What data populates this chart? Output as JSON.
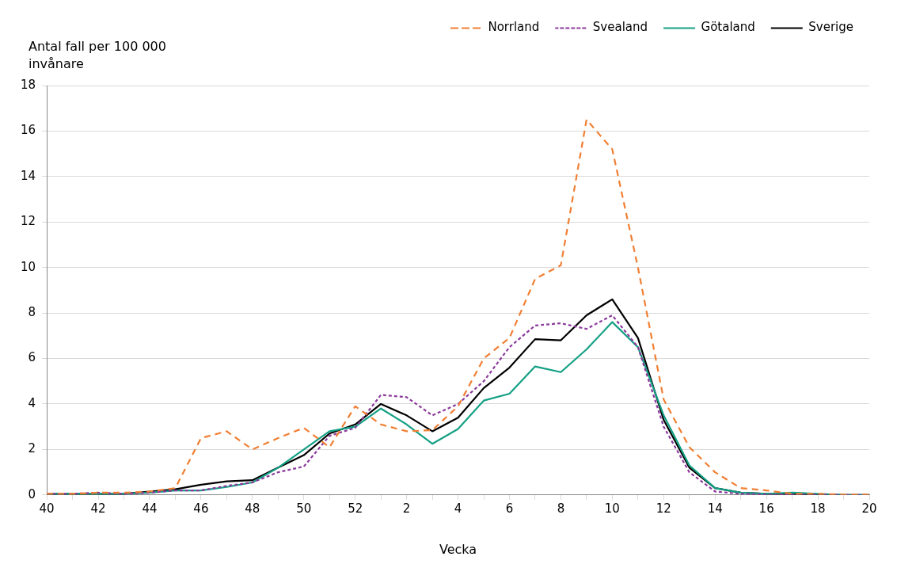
{
  "chart_data": {
    "type": "line",
    "ylabel": "Antal fall per 100 000 invånare",
    "xlabel": "Vecka",
    "categories": [
      "40",
      null,
      "42",
      null,
      "44",
      null,
      "46",
      null,
      "48",
      null,
      "50",
      null,
      "52",
      null,
      "2",
      null,
      "4",
      null,
      "6",
      null,
      "8",
      null,
      "10",
      null,
      "12",
      null,
      "14",
      null,
      "16",
      null,
      "18",
      null,
      "20"
    ],
    "ylim": [
      0,
      18
    ],
    "yticks": [
      0,
      2,
      4,
      6,
      8,
      10,
      12,
      14,
      16,
      18
    ],
    "grid": "y",
    "legend": "top right",
    "marker": "none",
    "series": [
      {
        "name": "Norrland",
        "color": "#f07f33",
        "line_style": "dashed",
        "values": [
          0.05,
          0.05,
          0.1,
          0.1,
          0.15,
          0.3,
          2.5,
          2.8,
          2.0,
          2.5,
          2.95,
          2.1,
          3.9,
          3.1,
          2.8,
          2.85,
          3.9,
          6.0,
          6.9,
          9.5,
          10.1,
          16.5,
          15.2,
          10.0,
          4.2,
          2.1,
          1.0,
          0.3,
          0.2,
          0.05,
          0.05,
          0.02,
          0.02
        ]
      },
      {
        "name": "Svealand",
        "color": "#8b3a9c",
        "line_style": "dotted",
        "values": [
          0.05,
          0.05,
          0.1,
          0.05,
          0.1,
          0.2,
          0.2,
          0.4,
          0.55,
          1.0,
          1.25,
          2.6,
          2.95,
          4.4,
          4.3,
          3.5,
          4.0,
          5.0,
          6.5,
          7.45,
          7.55,
          7.3,
          7.9,
          6.5,
          3.0,
          1.0,
          0.15,
          0.05,
          0.02,
          0.02,
          0.02,
          0,
          0
        ]
      },
      {
        "name": "Götaland",
        "color": "#14a085",
        "line_style": "solid",
        "values": [
          0.05,
          0.05,
          0.05,
          0.05,
          0.1,
          0.2,
          0.2,
          0.35,
          0.55,
          1.2,
          2.0,
          2.8,
          3.0,
          3.8,
          3.1,
          2.25,
          2.9,
          4.15,
          4.45,
          5.65,
          5.4,
          6.4,
          7.6,
          6.5,
          3.5,
          1.3,
          0.3,
          0.1,
          0.05,
          0.1,
          0.05,
          0,
          0
        ]
      },
      {
        "name": "Sverige",
        "color": "#000000",
        "line_style": "solid",
        "values": [
          0.05,
          0.05,
          0.05,
          0.05,
          0.15,
          0.25,
          0.45,
          0.6,
          0.65,
          1.2,
          1.75,
          2.7,
          3.1,
          4.0,
          3.5,
          2.8,
          3.4,
          4.7,
          5.6,
          6.85,
          6.8,
          7.9,
          8.6,
          6.9,
          3.3,
          1.2,
          0.3,
          0.1,
          0.05,
          0.05,
          0.02,
          0,
          0
        ]
      }
    ]
  }
}
